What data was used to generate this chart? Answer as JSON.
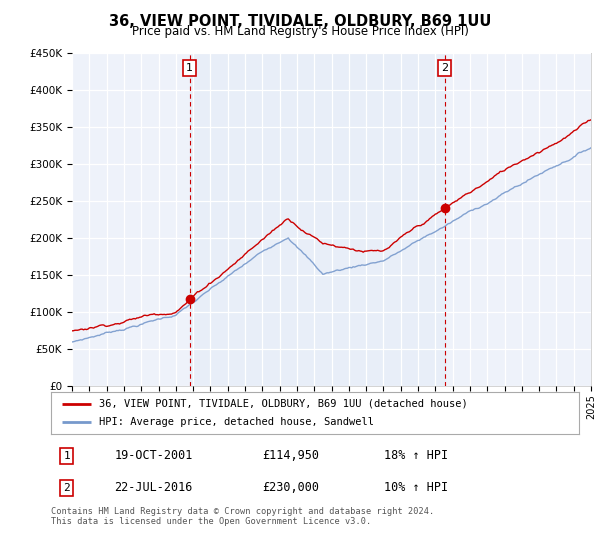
{
  "title": "36, VIEW POINT, TIVIDALE, OLDBURY, B69 1UU",
  "subtitle": "Price paid vs. HM Land Registry's House Price Index (HPI)",
  "legend_line1": "36, VIEW POINT, TIVIDALE, OLDBURY, B69 1UU (detached house)",
  "legend_line2": "HPI: Average price, detached house, Sandwell",
  "sale1_label": "1",
  "sale1_date": "19-OCT-2001",
  "sale1_price": "£114,950",
  "sale1_hpi": "18% ↑ HPI",
  "sale2_label": "2",
  "sale2_date": "22-JUL-2016",
  "sale2_price": "£230,000",
  "sale2_hpi": "10% ↑ HPI",
  "footer": "Contains HM Land Registry data © Crown copyright and database right 2024.\nThis data is licensed under the Open Government Licence v3.0.",
  "ylim_min": 0,
  "ylim_max": 450000,
  "yticks": [
    0,
    50000,
    100000,
    150000,
    200000,
    250000,
    300000,
    350000,
    400000,
    450000
  ],
  "ytick_labels": [
    "£0",
    "£50K",
    "£100K",
    "£150K",
    "£200K",
    "£250K",
    "£300K",
    "£350K",
    "£400K",
    "£450K"
  ],
  "sale1_year": 2001.8,
  "sale1_value": 114950,
  "sale2_year": 2016.55,
  "sale2_value": 230000,
  "hpi_color": "#7799cc",
  "price_color": "#cc0000",
  "vline_color": "#cc0000",
  "shade_color": "#dde8f5",
  "background_color": "#ffffff",
  "plot_bg_color": "#eef2fa",
  "grid_color": "#ffffff"
}
